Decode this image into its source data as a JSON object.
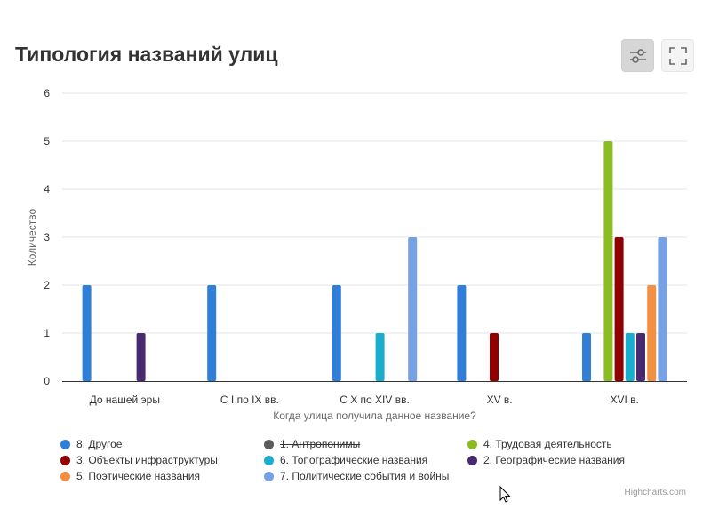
{
  "header": {
    "title": "Типология названий улиц"
  },
  "toolbar": {
    "filter_icon": "sliders-icon",
    "fullscreen_icon": "fullscreen-icon"
  },
  "credits": "Highcharts.com",
  "chart_data": {
    "type": "bar",
    "title": "Типология названий улиц",
    "xlabel": "Когда улица получила данное название?",
    "ylabel": "Количество",
    "ylim": [
      0,
      6
    ],
    "yticks": [
      0,
      1,
      2,
      3,
      4,
      5,
      6
    ],
    "grid": true,
    "legend_position": "bottom",
    "categories": [
      "До нашей эры",
      "С I по IX вв.",
      "С X по XIV вв.",
      "XV в.",
      "XVI в."
    ],
    "series": [
      {
        "name": "8. Другое",
        "color": "#2f7ed8",
        "visible": true,
        "values": [
          2,
          2,
          2,
          2,
          1
        ]
      },
      {
        "name": "1. Антропонимы",
        "color": "#5c5c5c",
        "visible": false,
        "values": [
          null,
          null,
          null,
          null,
          null
        ]
      },
      {
        "name": "4. Трудовая деятельность",
        "color": "#8bbc21",
        "visible": true,
        "values": [
          0,
          0,
          0,
          0,
          5
        ]
      },
      {
        "name": "3. Объекты инфраструктуры",
        "color": "#910000",
        "visible": true,
        "values": [
          0,
          0,
          0,
          1,
          3
        ]
      },
      {
        "name": "6. Топографические названия",
        "color": "#1aadce",
        "visible": true,
        "values": [
          0,
          0,
          1,
          0,
          1
        ]
      },
      {
        "name": "2. Географические названия",
        "color": "#492970",
        "visible": true,
        "values": [
          1,
          0,
          0,
          0,
          1
        ]
      },
      {
        "name": "5. Поэтические названия",
        "color": "#f28f43",
        "visible": true,
        "values": [
          0,
          0,
          0,
          0,
          2
        ]
      },
      {
        "name": "7. Политические события и войны",
        "color": "#77a1e5",
        "visible": true,
        "values": [
          0,
          0,
          3,
          0,
          3
        ]
      }
    ]
  }
}
